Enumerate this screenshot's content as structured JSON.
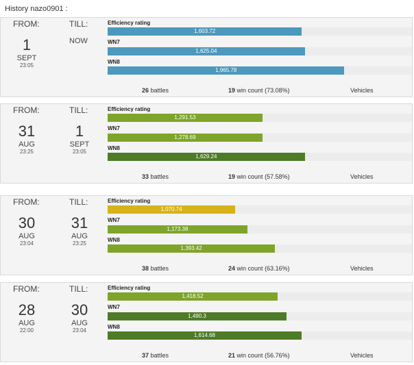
{
  "page_title": "History nazo0901 :",
  "labels": {
    "from": "FROM:",
    "till": "TILL:",
    "battles_suffix": "battles",
    "win_count_suffix": "win count",
    "vehicles": "Vehicles",
    "metric_efficiency": "Efficiency rating",
    "metric_wn7": "WN7",
    "metric_wn8": "WN8"
  },
  "colors": {
    "blue": "#4d98bd",
    "green_light": "#7ea42b",
    "green_dark": "#4e7b27",
    "yellow": "#d6b31a",
    "track": "#ececec"
  },
  "history": [
    {
      "from": {
        "day": "1",
        "month": "SEPT",
        "time": "23:05"
      },
      "till": {
        "now": "NOW"
      },
      "metrics": [
        {
          "value": "1,603.72",
          "level": 0.638,
          "color": "#4d98bd"
        },
        {
          "value": "1,625.04",
          "level": 0.648,
          "color": "#4d98bd"
        },
        {
          "value": "1,965.78",
          "level": 0.778,
          "color": "#4d98bd"
        }
      ],
      "battles": "26",
      "wins": "19",
      "win_pct": "(73.08%)"
    },
    {
      "from": {
        "day": "31",
        "month": "AUG",
        "time": "23:25"
      },
      "till": {
        "day": "1",
        "month": "SEPT",
        "time": "23:05"
      },
      "metrics": [
        {
          "value": "1,291.53",
          "level": 0.509,
          "color": "#7ea42b"
        },
        {
          "value": "1,278.69",
          "level": 0.509,
          "color": "#7ea42b"
        },
        {
          "value": "1,629.24",
          "level": 0.648,
          "color": "#4e7b27"
        }
      ],
      "battles": "33",
      "wins": "19",
      "win_pct": "(57.58%)"
    },
    {
      "from": {
        "day": "30",
        "month": "AUG",
        "time": "23:04"
      },
      "till": {
        "day": "31",
        "month": "AUG",
        "time": "23:25"
      },
      "metrics": [
        {
          "value": "1,070.74",
          "level": 0.419,
          "color": "#d6b31a"
        },
        {
          "value": "1,173.38",
          "level": 0.459,
          "color": "#7ea42b"
        },
        {
          "value": "1,393.42",
          "level": 0.55,
          "color": "#7ea42b"
        }
      ],
      "battles": "38",
      "wins": "24",
      "win_pct": "(63.16%)"
    },
    {
      "from": {
        "day": "28",
        "month": "AUG",
        "time": "22:00"
      },
      "till": {
        "day": "30",
        "month": "AUG",
        "time": "23:04"
      },
      "metrics": [
        {
          "value": "1,418.52",
          "level": 0.559,
          "color": "#7ea42b"
        },
        {
          "value": "1,490.3",
          "level": 0.588,
          "color": "#4e7b27"
        },
        {
          "value": "1,614.68",
          "level": 0.637,
          "color": "#4e7b27"
        }
      ],
      "battles": "37",
      "wins": "21",
      "win_pct": "(56.76%)"
    }
  ]
}
